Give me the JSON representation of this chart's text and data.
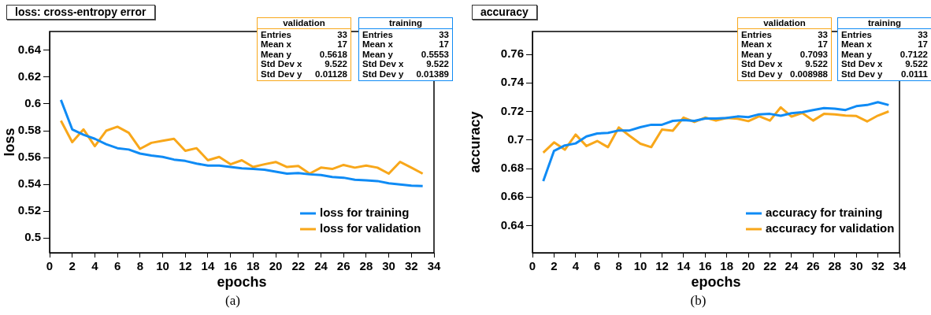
{
  "chart_data": [
    {
      "type": "line",
      "title": "loss: cross-entropy error",
      "xlabel": "epochs",
      "ylabel": "loss",
      "x": [
        1,
        2,
        3,
        4,
        5,
        6,
        7,
        8,
        9,
        10,
        11,
        12,
        13,
        14,
        15,
        16,
        17,
        18,
        19,
        20,
        21,
        22,
        23,
        24,
        25,
        26,
        27,
        28,
        29,
        30,
        31,
        32,
        33
      ],
      "series": [
        {
          "name": "loss for training",
          "color": "#0f8bf5",
          "values": [
            0.603,
            0.581,
            0.577,
            0.574,
            0.57,
            0.567,
            0.566,
            0.563,
            0.5615,
            0.5605,
            0.5585,
            0.5575,
            0.5555,
            0.554,
            0.554,
            0.553,
            0.552,
            0.5515,
            0.551,
            0.5495,
            0.548,
            0.5485,
            0.5475,
            0.547,
            0.5455,
            0.545,
            0.5435,
            0.543,
            0.5425,
            0.5408,
            0.54,
            0.539,
            0.5388
          ]
        },
        {
          "name": "loss for validation",
          "color": "#f8a71a",
          "values": [
            0.5875,
            0.5715,
            0.581,
            0.5685,
            0.58,
            0.583,
            0.5785,
            0.5665,
            0.571,
            0.5725,
            0.574,
            0.565,
            0.567,
            0.558,
            0.5605,
            0.555,
            0.558,
            0.553,
            0.555,
            0.5567,
            0.553,
            0.5538,
            0.548,
            0.5525,
            0.5515,
            0.5545,
            0.5525,
            0.554,
            0.5525,
            0.548,
            0.5568,
            0.5525,
            0.548
          ]
        }
      ],
      "xlim": [
        0,
        34
      ],
      "xticks": [
        0,
        2,
        4,
        6,
        8,
        10,
        12,
        14,
        16,
        18,
        20,
        22,
        24,
        26,
        28,
        30,
        32,
        34
      ],
      "ylim": [
        0.489,
        0.654
      ],
      "yticks": [
        0.5,
        0.52,
        0.54,
        0.56,
        0.58,
        0.6,
        0.62,
        0.64
      ],
      "grid": false,
      "legend": "bottom right",
      "marker": "none",
      "line_style": "solid",
      "annotations": [
        "validation\nEntries 33\nMean x 17\nMean y 0.5618\nStd Dev x 9.522\nStd Dev y 0.01128",
        "training\nEntries 33\nMean x 17\nMean y 0.5553\nStd Dev x 9.522\nStd Dev y 0.01389",
        "(a)"
      ]
    },
    {
      "type": "line",
      "title": "accuracy",
      "xlabel": "epochs",
      "ylabel": "accuracy",
      "x": [
        1,
        2,
        3,
        4,
        5,
        6,
        7,
        8,
        9,
        10,
        11,
        12,
        13,
        14,
        15,
        16,
        17,
        18,
        19,
        20,
        21,
        22,
        23,
        24,
        25,
        26,
        27,
        28,
        29,
        30,
        31,
        32,
        33
      ],
      "series": [
        {
          "name": "accuracy for training",
          "color": "#0f8bf5",
          "values": [
            0.6712,
            0.6924,
            0.6962,
            0.6976,
            0.7025,
            0.7046,
            0.705,
            0.7067,
            0.7067,
            0.709,
            0.7107,
            0.7107,
            0.7134,
            0.7139,
            0.7134,
            0.715,
            0.715,
            0.7155,
            0.7165,
            0.716,
            0.718,
            0.7183,
            0.717,
            0.7188,
            0.7195,
            0.721,
            0.7223,
            0.722,
            0.721,
            0.7237,
            0.7245,
            0.7265,
            0.7245
          ]
        },
        {
          "name": "accuracy for validation",
          "color": "#f8a71a",
          "values": [
            0.6911,
            0.6983,
            0.6932,
            0.7038,
            0.6958,
            0.6993,
            0.695,
            0.7088,
            0.7029,
            0.6974,
            0.695,
            0.7073,
            0.7065,
            0.7157,
            0.7126,
            0.7157,
            0.7136,
            0.7155,
            0.7149,
            0.7132,
            0.7166,
            0.7136,
            0.7229,
            0.7164,
            0.7189,
            0.7136,
            0.7183,
            0.7179,
            0.7171,
            0.7168,
            0.713,
            0.7171,
            0.72
          ]
        }
      ],
      "xlim": [
        0,
        34
      ],
      "xticks": [
        0,
        2,
        4,
        6,
        8,
        10,
        12,
        14,
        16,
        18,
        20,
        22,
        24,
        26,
        28,
        30,
        32,
        34
      ],
      "ylim": [
        0.621,
        0.776
      ],
      "yticks": [
        0.64,
        0.66,
        0.68,
        0.7,
        0.72,
        0.74,
        0.76
      ],
      "grid": false,
      "legend": "bottom right",
      "marker": "none",
      "line_style": "solid",
      "annotations": [
        "validation\nEntries 33\nMean x 17\nMean y 0.7093\nStd Dev x 9.522\nStd Dev y 0.008988",
        "training\nEntries 33\nMean x 17\nMean y 0.7122\nStd Dev x 9.522\nStd Dev y 0.0111",
        "(b)"
      ]
    }
  ]
}
